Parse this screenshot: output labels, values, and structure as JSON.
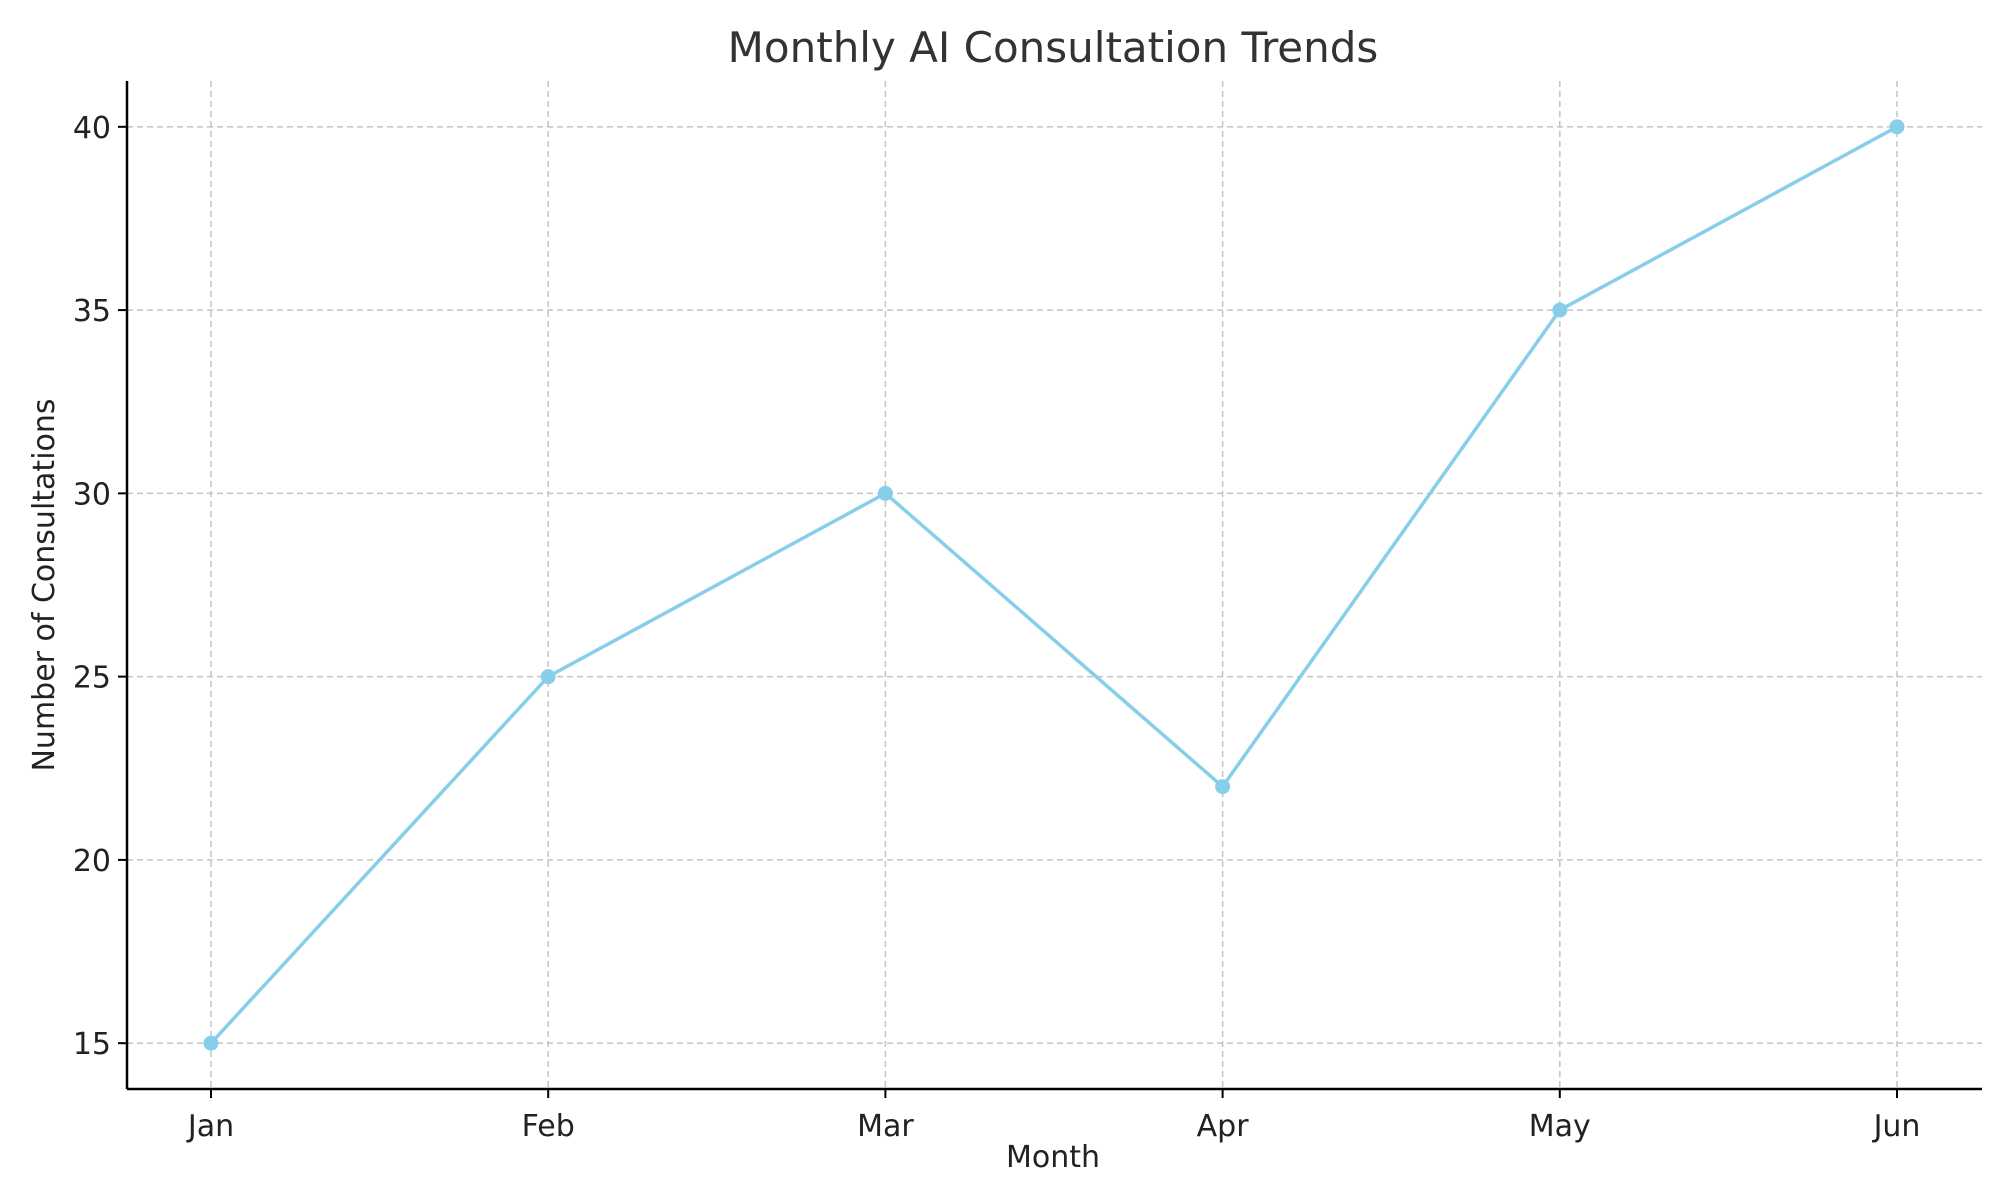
{
  "chart_data": {
    "type": "line",
    "title": "Monthly AI Consultation Trends",
    "xlabel": "Month",
    "ylabel": "Number of Consultations",
    "categories": [
      "Jan",
      "Feb",
      "Mar",
      "Apr",
      "May",
      "Jun"
    ],
    "series": [
      {
        "values": [
          15,
          25,
          30,
          22,
          35,
          40
        ],
        "color": "#87ceeb"
      }
    ],
    "ylim": [
      13.75,
      41.25
    ],
    "yticks": [
      15,
      20,
      25,
      30,
      35,
      40
    ],
    "grid": true,
    "marker": "circle",
    "legend": "none"
  }
}
